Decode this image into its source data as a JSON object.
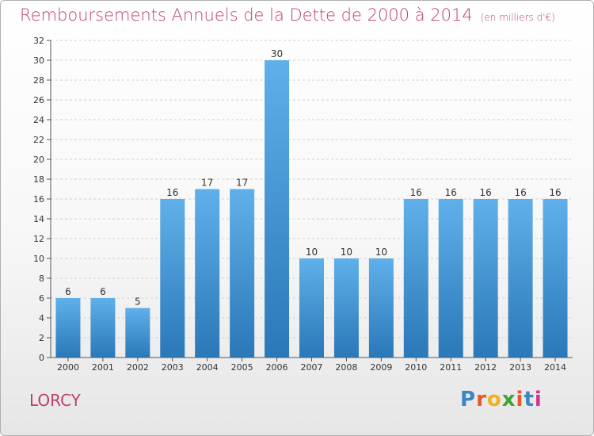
{
  "header": {
    "title": "Remboursements Annuels de la Dette de 2000 à 2014",
    "unit": "(en milliers d'€)"
  },
  "footer": {
    "city": "LORCY",
    "logo_letters": [
      "P",
      "r",
      "o",
      "x",
      "i",
      "t",
      "i"
    ],
    "logo_colors": [
      "#3a86c8",
      "#e8562a",
      "#f2b01e",
      "#3fa535",
      "#e8562a",
      "#3a86c8",
      "#d6338a"
    ]
  },
  "colors": {
    "bar_top": "#5fb0ea",
    "bar_bottom": "#2a78b8",
    "title": "#c0406a",
    "grid": "#d0d0d0"
  },
  "chart_data": {
    "type": "bar",
    "title": "Remboursements Annuels de la Dette de 2000 à 2014",
    "categories": [
      "2000",
      "2001",
      "2002",
      "2003",
      "2004",
      "2005",
      "2006",
      "2007",
      "2008",
      "2009",
      "2010",
      "2011",
      "2012",
      "2013",
      "2014"
    ],
    "values": [
      6,
      6,
      5,
      16,
      17,
      17,
      30,
      10,
      10,
      10,
      16,
      16,
      16,
      16,
      16
    ],
    "ylim": [
      0,
      32
    ],
    "yticks": [
      0,
      2,
      4,
      6,
      8,
      10,
      12,
      14,
      16,
      18,
      20,
      22,
      24,
      26,
      28,
      30,
      32
    ],
    "grid": "horizontal",
    "xlabel": "",
    "ylabel": ""
  }
}
